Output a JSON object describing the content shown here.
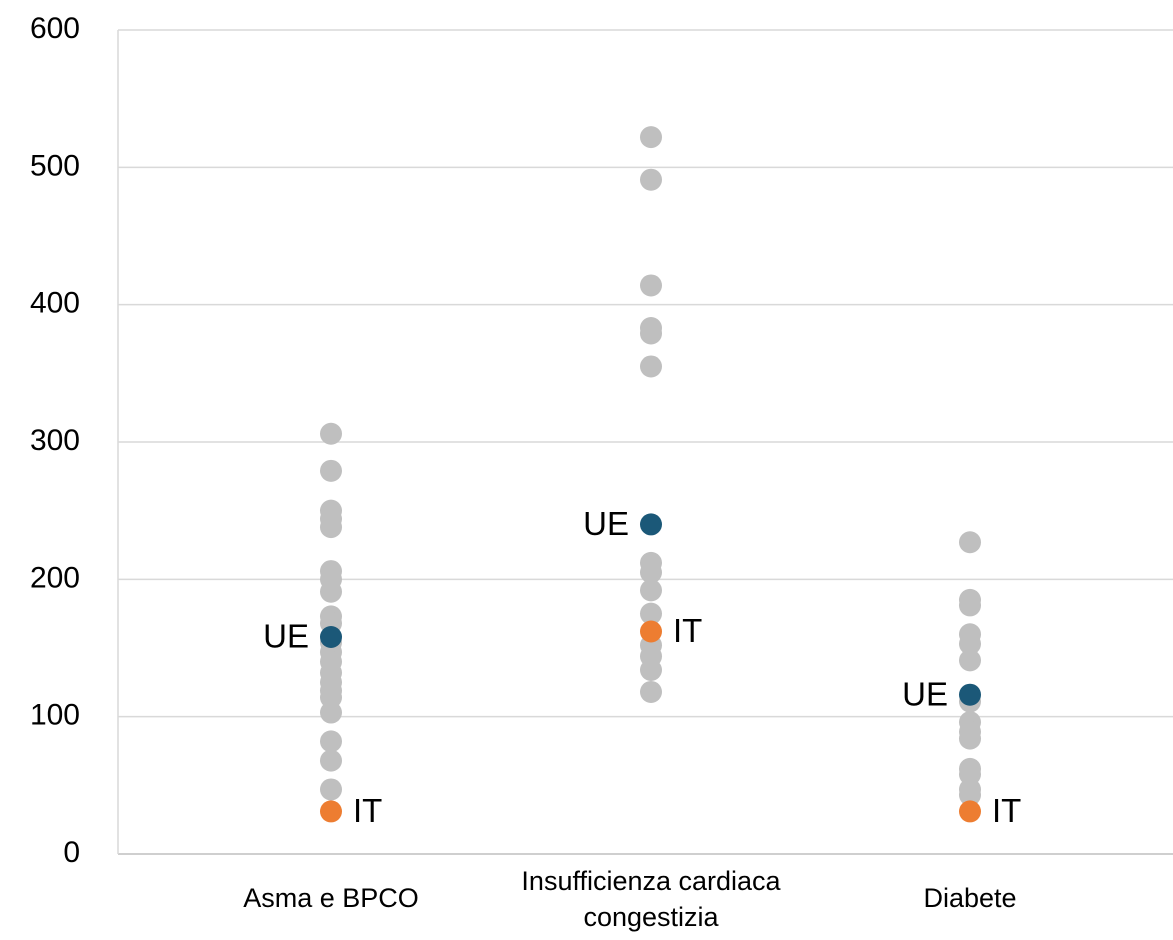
{
  "chart_data": {
    "type": "strip",
    "categories": [
      "Asma e BPCO",
      "Insufficienza cardiaca congestizia",
      "Diabete"
    ],
    "ylim": [
      0,
      600
    ],
    "yticks": [
      0,
      100,
      200,
      300,
      400,
      500,
      600
    ],
    "grid": true,
    "series": [
      {
        "color": "#bfbfbf",
        "values": [
          [
            306,
            279,
            250,
            244,
            238,
            206,
            200,
            191,
            173,
            168,
            154,
            147,
            140,
            132,
            125,
            119,
            114,
            103,
            82,
            68,
            47
          ],
          [
            522,
            491,
            414,
            383,
            379,
            355,
            212,
            205,
            192,
            175,
            152,
            144,
            134,
            118
          ],
          [
            227,
            185,
            181,
            160,
            153,
            141,
            111,
            96,
            89,
            84,
            62,
            58,
            47,
            43
          ]
        ]
      },
      {
        "name": "UE",
        "color": "#1b5878",
        "values": [
          158,
          240,
          116
        ]
      },
      {
        "name": "IT",
        "color": "#ed7d31",
        "values": [
          31,
          162,
          31
        ]
      }
    ]
  }
}
